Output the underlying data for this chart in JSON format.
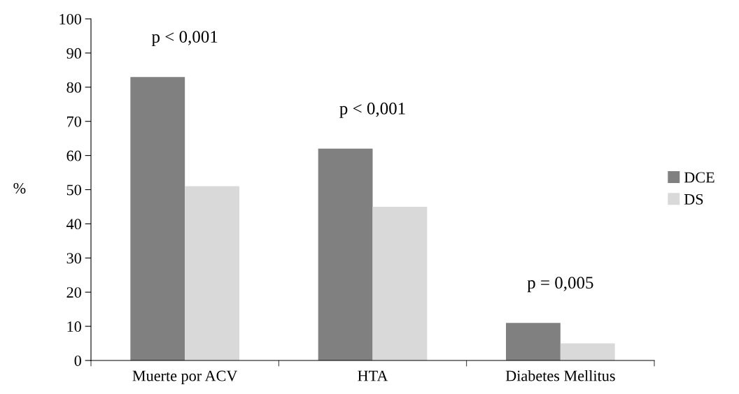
{
  "chart_data": {
    "type": "bar",
    "ylabel": "%",
    "categories": [
      "Muerte por ACV",
      "HTA",
      "Diabetes Mellitus"
    ],
    "series": [
      {
        "name": "DCE",
        "color": "#808080",
        "values": [
          83,
          62,
          11
        ]
      },
      {
        "name": "DS",
        "color": "#d9d9d9",
        "values": [
          51,
          45,
          5
        ]
      }
    ],
    "ylim": [
      0,
      100
    ],
    "yticks": [
      0,
      10,
      20,
      30,
      40,
      50,
      60,
      70,
      80,
      90,
      100
    ],
    "grid": false,
    "legend": "right",
    "annotations": [
      "p < 0,001",
      "p < 0,001",
      "p = 0,005"
    ]
  }
}
